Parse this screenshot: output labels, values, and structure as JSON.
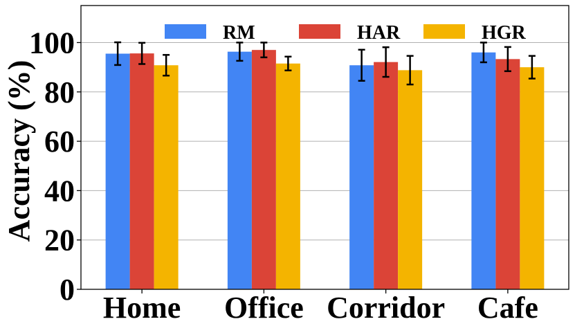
{
  "chart_data": {
    "type": "bar",
    "ylabel": "Accuracy (%)",
    "xlabel": "",
    "ylim": [
      0,
      115
    ],
    "yticks": [
      0,
      20,
      40,
      60,
      80,
      100
    ],
    "grid": "horizontal",
    "legend_position": "top",
    "categories": [
      "Home",
      "Office",
      "Corridor",
      "Cafe"
    ],
    "series": [
      {
        "name": "RM",
        "color": "#4285F4",
        "values": [
          95.5,
          96.3,
          90.8,
          96.0
        ],
        "errors": [
          4.6,
          3.7,
          6.3,
          4.0
        ]
      },
      {
        "name": "HAR",
        "color": "#DB4437",
        "values": [
          95.6,
          97.0,
          92.1,
          93.3
        ],
        "errors": [
          4.3,
          3.0,
          6.0,
          4.9
        ]
      },
      {
        "name": "HGR",
        "color": "#F4B400",
        "values": [
          90.8,
          91.5,
          88.8,
          90.0
        ],
        "errors": [
          4.2,
          2.8,
          5.8,
          4.6
        ]
      }
    ]
  }
}
